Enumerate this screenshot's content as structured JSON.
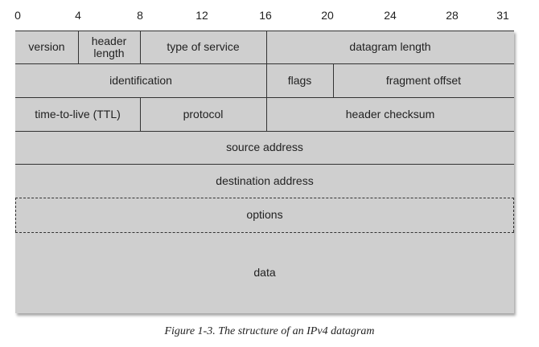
{
  "bit_ticks": [
    "0",
    "4",
    "8",
    "12",
    "16",
    "20",
    "24",
    "28",
    "31"
  ],
  "rows": [
    {
      "fields": [
        {
          "label": "version"
        },
        {
          "label": "header\nlength"
        },
        {
          "label": "type of service"
        },
        {
          "label": "datagram length"
        }
      ]
    },
    {
      "fields": [
        {
          "label": "identification"
        },
        {
          "label": "flags"
        },
        {
          "label": "fragment offset"
        }
      ]
    },
    {
      "fields": [
        {
          "label": "time-to-live (TTL)"
        },
        {
          "label": "protocol"
        },
        {
          "label": "header checksum"
        }
      ]
    },
    {
      "fields": [
        {
          "label": "source address"
        }
      ]
    },
    {
      "fields": [
        {
          "label": "destination address"
        }
      ]
    },
    {
      "fields": [
        {
          "label": "options"
        }
      ]
    },
    {
      "fields": [
        {
          "label": "data"
        }
      ]
    }
  ],
  "caption": "Figure 1-3. The structure of an IPv4 datagram"
}
